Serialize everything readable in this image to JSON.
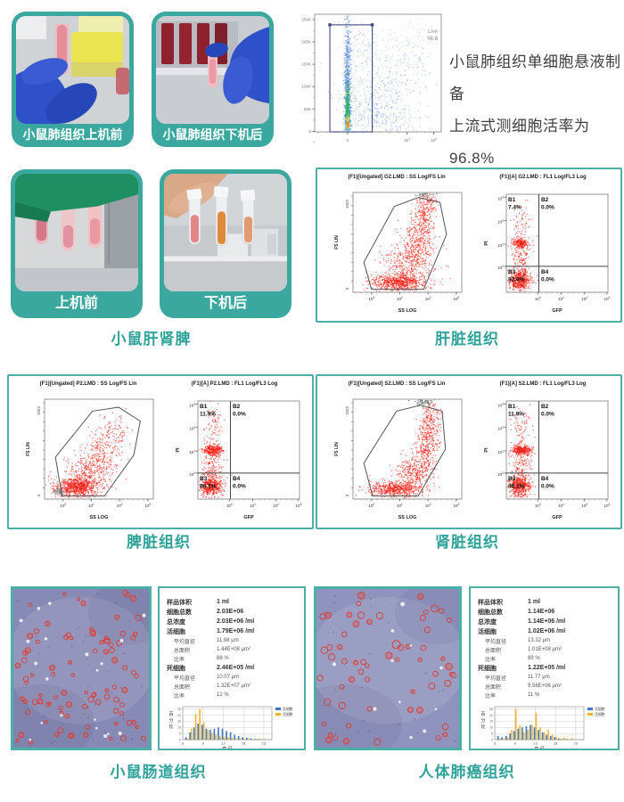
{
  "colors": {
    "accent": "#2fa39a",
    "panel_border": "#4aafa7",
    "flow_red": "#f11c12",
    "flow_blue": "#4a7fdf",
    "hist_blue": "#3d76c4",
    "hist_yellow": "#f3b32b",
    "micro_bg_left": "#878ab5",
    "micro_bg_right": "#9093bd"
  },
  "row1": {
    "photos": [
      {
        "label": "小鼠肺组织上机前"
      },
      {
        "label": "小鼠肺组织下机后"
      }
    ],
    "note_line1": "小鼠肺组织单细胞悬液制备",
    "note_line2": "上流式测细胞活率为96.8%"
  },
  "row2": {
    "photos": [
      {
        "label": "上机前"
      },
      {
        "label": "下机后"
      }
    ],
    "caption": "小鼠肝肾脾"
  },
  "flow_panels": [
    {
      "caption": "肝脏组织",
      "left_title": "(F1)[Ungated] G2.LMD : SS Log/FS Lin",
      "right_title": "(F1)[A] G2.LMD : FL1 Log/FL3 Log"
    },
    {
      "caption": "脾脏组织",
      "left_title": "(F1)[Ungated] P2.LMD : SS Log/FS Lin",
      "right_title": "(F1)[A] P2.LMD : FL1 Log/FL3 Log"
    },
    {
      "caption": "肾脏组织",
      "left_title": "(F1)[Ungated] S2.LMD : SS Log/FS Lin",
      "right_title": "(F1)[A] S2.LMD : FL1 Log/FL3 Log"
    }
  ],
  "counter_panels": [
    {
      "caption": "小鼠肠道组织",
      "rows": [
        {
          "label": "样品体积",
          "value": "1 ml"
        },
        {
          "label": "细胞总数",
          "value": "2.03E+06"
        },
        {
          "label": "总浓度",
          "value": "2.03E+06 /ml"
        },
        {
          "label": "活细胞",
          "value": "1.79E+06 /ml"
        },
        {
          "label": "平均直径",
          "value": "11.98 μm",
          "sub": true
        },
        {
          "label": "总面积",
          "value": "1.44E+08 μm²",
          "sub": true
        },
        {
          "label": "比率",
          "value": "88 %",
          "sub": true
        },
        {
          "label": "死细胞",
          "value": "2.46E+05 /ml"
        },
        {
          "label": "平均直径",
          "value": "10.07 μm",
          "sub": true
        },
        {
          "label": "总面积",
          "value": "1.32E+07 μm²",
          "sub": true
        },
        {
          "label": "比率",
          "value": "12 %",
          "sub": true
        }
      ]
    },
    {
      "caption": "人体肺癌组织",
      "rows": [
        {
          "label": "样品体积",
          "value": "1 ml"
        },
        {
          "label": "细胞总数",
          "value": "1.14E+06"
        },
        {
          "label": "总浓度",
          "value": "1.14E+06 /ml"
        },
        {
          "label": "活细胞",
          "value": "1.02E+06 /ml"
        },
        {
          "label": "平均直径",
          "value": "13.32 μm",
          "sub": true
        },
        {
          "label": "总面积",
          "value": "1.01E+08 μm²",
          "sub": true
        },
        {
          "label": "比率",
          "value": "89 %",
          "sub": true
        },
        {
          "label": "死细胞",
          "value": "1.22E+05 /ml"
        },
        {
          "label": "平均直径",
          "value": "11.77 μm",
          "sub": true
        },
        {
          "label": "总面积",
          "value": "9.56E+06 μm²",
          "sub": true
        },
        {
          "label": "比率",
          "value": "11 %",
          "sub": true
        }
      ]
    }
  ],
  "chart_data": [
    {
      "id": "flow-top",
      "kind": "flow-top",
      "type": "scatter",
      "description": "小鼠肺组织单细胞悬液流式活率检测，Live 门 96.8%",
      "gate": {
        "label": "Live",
        "value": "96.8",
        "x1": 0.12,
        "x2": 0.455,
        "y_top": 0.09
      },
      "y_ticks": [
        "250K",
        "200K",
        "150K",
        "100K",
        "50K",
        "0"
      ],
      "x_ticks": [
        [
          "0",
          0.26
        ],
        [
          "10^4",
          0.73
        ],
        [
          "10^5",
          0.94
        ]
      ],
      "point_color": "#4a7fdf",
      "seed": 11,
      "clusters": [
        [
          0.26,
          0.6,
          0.013,
          0.3,
          650,
          "#4a7fdf",
          0.55
        ],
        [
          0.26,
          0.88,
          0.01,
          0.07,
          350,
          "#38a8d8",
          0.7
        ],
        [
          0.26,
          0.8,
          0.006,
          0.1,
          220,
          "#3ab54e",
          0.85
        ],
        [
          0.262,
          0.92,
          0.005,
          0.025,
          120,
          "#ffd83c",
          0.95
        ],
        [
          0.263,
          0.936,
          0.004,
          0.012,
          60,
          "#ff8c1a",
          0.95
        ],
        [
          0.47,
          0.76,
          0.15,
          0.13,
          300,
          "#5b8ae6",
          0.4
        ],
        [
          0.6,
          0.48,
          0.17,
          0.17,
          190,
          "#5b8ae6",
          0.35
        ],
        [
          0.38,
          0.27,
          0.1,
          0.11,
          80,
          "#5b8ae6",
          0.35
        ],
        [
          0.78,
          0.3,
          0.1,
          0.14,
          60,
          "#5b8ae6",
          0.3
        ],
        [
          0.55,
          0.92,
          0.18,
          0.05,
          120,
          "#5b8ae6",
          0.4
        ]
      ]
    },
    {
      "id": "liver-left",
      "kind": "flow-left",
      "type": "scatter",
      "ylabel": "FS LIN",
      "xlabel": "SS LOG",
      "y_ticks": [
        "1023",
        "0"
      ],
      "x_ticks": [
        [
          "10^0",
          0.17
        ],
        [
          "10^1",
          0.43
        ],
        [
          "10^2",
          0.69
        ],
        [
          "10^3",
          0.95
        ]
      ],
      "polygon": [
        [
          0.17,
          0.97
        ],
        [
          0.1,
          0.7
        ],
        [
          0.38,
          0.14
        ],
        [
          0.6,
          0.05
        ],
        [
          0.8,
          0.1
        ],
        [
          0.86,
          0.42
        ],
        [
          0.65,
          0.97
        ]
      ],
      "point_color": "#f11c12",
      "seed": 21,
      "clusters": [
        [
          0.42,
          0.9,
          0.13,
          0.045,
          700
        ],
        [
          0.52,
          0.7,
          0.11,
          0.1,
          350
        ],
        [
          0.6,
          0.45,
          0.07,
          0.12,
          280
        ],
        [
          0.66,
          0.22,
          0.05,
          0.09,
          160
        ],
        [
          0.7,
          0.08,
          0.04,
          0.04,
          60
        ],
        [
          0.66,
          0.02,
          0.05,
          0.015,
          50,
          "#8a8a8a",
          0.8
        ]
      ]
    },
    {
      "id": "liver-right",
      "kind": "flow-right",
      "type": "scatter",
      "ylabel": "PI",
      "xlabel": "GFP",
      "y_ticks": [
        "10^3",
        "10^2",
        "10^1",
        "10^0"
      ],
      "x_ticks": [
        [
          "10^0",
          0.31
        ],
        [
          "10^1",
          0.54
        ],
        [
          "10^2",
          0.77
        ],
        [
          "10^3",
          0.99
        ]
      ],
      "vline": 0.32,
      "hline": 0.735,
      "quadrants": [
        [
          "B1",
          "7.4%"
        ],
        [
          "B2",
          "0.0%"
        ],
        [
          "B3",
          "92.6%"
        ],
        [
          "B4",
          "0.0%"
        ]
      ],
      "point_color": "#f11c12",
      "seed": 22,
      "clusters": [
        [
          0.13,
          0.88,
          0.055,
          0.05,
          500
        ],
        [
          0.14,
          0.5,
          0.04,
          0.025,
          220
        ],
        [
          0.14,
          0.66,
          0.045,
          0.1,
          130
        ],
        [
          0.15,
          0.3,
          0.05,
          0.11,
          60
        ]
      ]
    },
    {
      "id": "spleen-left",
      "kind": "flow-left",
      "type": "scatter",
      "ylabel": "FS LIN",
      "xlabel": "SS LOG",
      "y_ticks": [
        "1023",
        "0"
      ],
      "x_ticks": [
        [
          "10^0",
          0.17
        ],
        [
          "10^1",
          0.43
        ],
        [
          "10^2",
          0.69
        ],
        [
          "10^3",
          0.95
        ]
      ],
      "polygon": [
        [
          0.16,
          0.97
        ],
        [
          0.1,
          0.58
        ],
        [
          0.44,
          0.12
        ],
        [
          0.68,
          0.08
        ],
        [
          0.88,
          0.22
        ],
        [
          0.82,
          0.56
        ],
        [
          0.55,
          0.97
        ]
      ],
      "point_color": "#f11c12",
      "seed": 31,
      "clusters": [
        [
          0.3,
          0.88,
          0.1,
          0.05,
          800
        ],
        [
          0.42,
          0.72,
          0.1,
          0.09,
          300
        ],
        [
          0.54,
          0.52,
          0.09,
          0.11,
          170
        ],
        [
          0.64,
          0.32,
          0.07,
          0.09,
          90
        ],
        [
          0.13,
          0.93,
          0.03,
          0.02,
          60,
          "#8a8a8a",
          0.8
        ]
      ]
    },
    {
      "id": "spleen-right",
      "kind": "flow-right",
      "type": "scatter",
      "ylabel": "PI",
      "xlabel": "GFP",
      "y_ticks": [
        "10^3",
        "10^2",
        "10^1",
        "10^0"
      ],
      "x_ticks": [
        [
          "10^0",
          0.31
        ],
        [
          "10^1",
          0.54
        ],
        [
          "10^2",
          0.77
        ],
        [
          "10^3",
          0.99
        ]
      ],
      "vline": 0.32,
      "hline": 0.735,
      "quadrants": [
        [
          "B1",
          "11.9%"
        ],
        [
          "B2",
          "0.0%"
        ],
        [
          "B3",
          "88.1%"
        ],
        [
          "B4",
          "0.0%"
        ]
      ],
      "point_color": "#f11c12",
      "seed": 32,
      "clusters": [
        [
          0.13,
          0.87,
          0.055,
          0.05,
          480
        ],
        [
          0.15,
          0.5,
          0.05,
          0.025,
          300
        ],
        [
          0.15,
          0.66,
          0.05,
          0.1,
          150
        ],
        [
          0.15,
          0.28,
          0.05,
          0.12,
          80
        ]
      ]
    },
    {
      "id": "kidney-left",
      "kind": "flow-left",
      "type": "scatter",
      "ylabel": "FS LIN",
      "xlabel": "SS LOG",
      "y_ticks": [
        "1023",
        "0"
      ],
      "x_ticks": [
        [
          "10^0",
          0.17
        ],
        [
          "10^1",
          0.43
        ],
        [
          "10^2",
          0.69
        ],
        [
          "10^3",
          0.95
        ]
      ],
      "polygon": [
        [
          0.18,
          0.97
        ],
        [
          0.1,
          0.64
        ],
        [
          0.4,
          0.12
        ],
        [
          0.62,
          0.06
        ],
        [
          0.82,
          0.12
        ],
        [
          0.85,
          0.5
        ],
        [
          0.6,
          0.97
        ]
      ],
      "point_color": "#f11c12",
      "seed": 41,
      "clusters": [
        [
          0.4,
          0.9,
          0.12,
          0.04,
          600
        ],
        [
          0.57,
          0.73,
          0.08,
          0.08,
          280
        ],
        [
          0.67,
          0.48,
          0.05,
          0.13,
          300
        ],
        [
          0.72,
          0.2,
          0.045,
          0.1,
          180
        ],
        [
          0.64,
          0.03,
          0.045,
          0.02,
          70,
          "#777777",
          0.85
        ]
      ]
    },
    {
      "id": "kidney-right",
      "kind": "flow-right",
      "type": "scatter",
      "ylabel": "PI",
      "xlabel": "GFP",
      "y_ticks": [
        "10^3",
        "10^2",
        "10^1",
        "10^0"
      ],
      "x_ticks": [
        [
          "10^0",
          0.31
        ],
        [
          "10^1",
          0.54
        ],
        [
          "10^2",
          0.77
        ],
        [
          "10^3",
          0.99
        ]
      ],
      "vline": 0.32,
      "hline": 0.735,
      "quadrants": [
        [
          "B1",
          "11.9%"
        ],
        [
          "B2",
          "0.0%"
        ],
        [
          "B3",
          "88.1%"
        ],
        [
          "B4",
          "0.0%"
        ]
      ],
      "point_color": "#f11c12",
      "seed": 42,
      "clusters": [
        [
          0.13,
          0.87,
          0.055,
          0.05,
          480
        ],
        [
          0.15,
          0.5,
          0.05,
          0.025,
          300
        ],
        [
          0.15,
          0.66,
          0.05,
          0.1,
          150
        ],
        [
          0.15,
          0.28,
          0.05,
          0.12,
          80
        ]
      ]
    },
    {
      "id": "hist-intestine",
      "kind": "hist",
      "type": "bar",
      "ylabel": "百分比",
      "xlabel": "直 径",
      "x_ticks": [
        3,
        8,
        13,
        18,
        23
      ],
      "ylim": [
        0,
        27
      ],
      "bin_start": 4,
      "series": [
        {
          "name": "总细胞",
          "color": "#3d76c4",
          "values": [
            2,
            6,
            10,
            13,
            12,
            9,
            8,
            9,
            10,
            9,
            7,
            6,
            4,
            3,
            2,
            1.5,
            1,
            0.5,
            0.5,
            0.3
          ]
        },
        {
          "name": "活细胞",
          "color": "#f3b32b",
          "values": [
            1,
            9,
            21,
            25,
            14,
            8,
            5,
            4,
            3,
            2.5,
            2,
            1.5,
            1,
            0.6,
            0.5,
            1,
            0.3,
            0.8,
            0.2,
            0.5
          ]
        }
      ]
    },
    {
      "id": "hist-lung",
      "kind": "hist",
      "type": "bar",
      "ylabel": "百分比",
      "xlabel": "直 径",
      "x_ticks": [
        3,
        8,
        13,
        18,
        23
      ],
      "ylim": [
        0,
        27
      ],
      "bin_start": 4,
      "series": [
        {
          "name": "总细胞",
          "color": "#3d76c4",
          "values": [
            3,
            2,
            3,
            5,
            7,
            9,
            10,
            11,
            12,
            10,
            8,
            6,
            4,
            3,
            2,
            1,
            0.5,
            0.5,
            0.2,
            0
          ]
        },
        {
          "name": "活细胞",
          "color": "#f3b32b",
          "values": [
            1,
            0.5,
            2,
            8,
            25,
            12,
            6,
            8,
            12,
            22,
            10,
            6,
            8,
            4,
            2,
            1,
            2,
            0.3,
            1,
            0
          ]
        }
      ]
    },
    {
      "id": "micro-intestine",
      "kind": "micro",
      "bg": "#878ab5",
      "rings": 92,
      "whites": 20,
      "specks": 60,
      "seed": 7,
      "rmin": 1.6,
      "rmax": 3.2,
      "vw": 152,
      "vh": 178
    },
    {
      "id": "micro-lung",
      "kind": "micro",
      "bg": "#9093bd",
      "rings": 58,
      "whites": 11,
      "specks": 45,
      "seed": 13,
      "rmin": 2.0,
      "rmax": 4.0,
      "vw": 160,
      "vh": 178,
      "big": [
        0.56,
        0.35
      ]
    }
  ]
}
